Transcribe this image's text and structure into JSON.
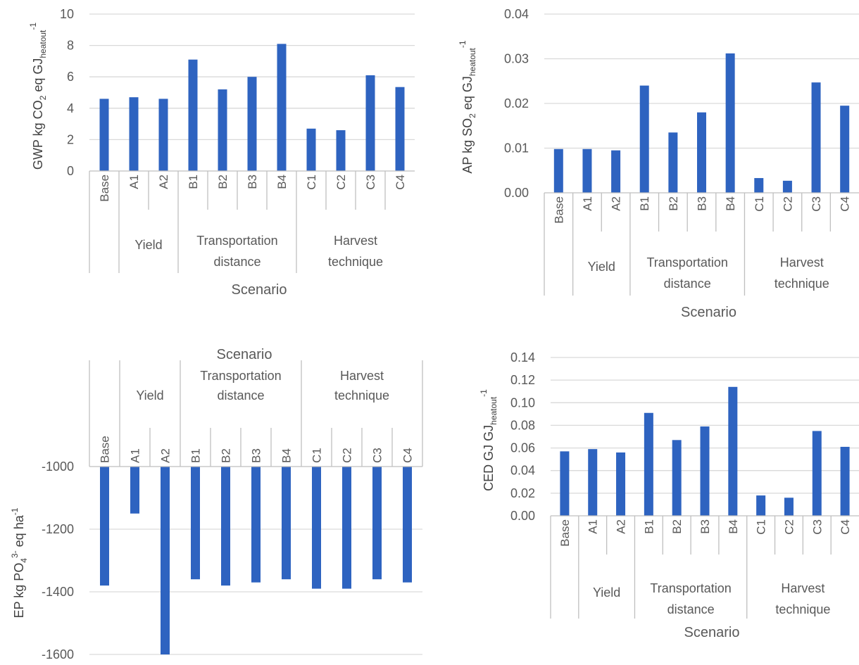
{
  "chart_data": [
    {
      "id": "gwp",
      "type": "bar",
      "ylabel_main": "GWP kg CO",
      "ylabel_sub": "2",
      "ylabel_mid": " eq GJ",
      "ylabel_sub2": "heatout",
      "ylabel_sup": "-1",
      "xlabel": "Scenario",
      "ylim": [
        0,
        10
      ],
      "yticks": [
        "0",
        "2",
        "4",
        "6",
        "8",
        "10"
      ],
      "categories": [
        "Base",
        "A1",
        "A2",
        "B1",
        "B2",
        "B3",
        "B4",
        "C1",
        "C2",
        "C3",
        "C4"
      ],
      "groups": [
        {
          "label_lines": [
            ""
          ],
          "span": 1
        },
        {
          "label_lines": [
            "Yield"
          ],
          "span": 2
        },
        {
          "label_lines": [
            "Transportation",
            "distance"
          ],
          "span": 4
        },
        {
          "label_lines": [
            "Harvest",
            "technique"
          ],
          "span": 4
        }
      ],
      "values": [
        4.6,
        4.7,
        4.6,
        7.1,
        5.2,
        6.0,
        8.1,
        2.7,
        2.6,
        6.1,
        5.35
      ],
      "color": "#2e63c0"
    },
    {
      "id": "ap",
      "type": "bar",
      "ylabel_main": "AP kg SO",
      "ylabel_sub": "2",
      "ylabel_mid": " eq GJ",
      "ylabel_sub2": "heatout",
      "ylabel_sup": "-1",
      "xlabel": "Scenario",
      "ylim": [
        0,
        0.04
      ],
      "yticks": [
        "0.00",
        "0.01",
        "0.02",
        "0.03",
        "0.04"
      ],
      "categories": [
        "Base",
        "A1",
        "A2",
        "B1",
        "B2",
        "B3",
        "B4",
        "C1",
        "C2",
        "C3",
        "C4"
      ],
      "groups": [
        {
          "label_lines": [
            ""
          ],
          "span": 1
        },
        {
          "label_lines": [
            "Yield"
          ],
          "span": 2
        },
        {
          "label_lines": [
            "Transportation",
            "distance"
          ],
          "span": 4
        },
        {
          "label_lines": [
            "Harvest",
            "technique"
          ],
          "span": 4
        }
      ],
      "values": [
        0.0098,
        0.0098,
        0.0095,
        0.024,
        0.0135,
        0.018,
        0.0312,
        0.0033,
        0.0027,
        0.0247,
        0.0195
      ],
      "color": "#2e63c0"
    },
    {
      "id": "ep",
      "type": "bar",
      "ylabel_main": "EP kg PO",
      "ylabel_sub": "4",
      "ylabel_sup_first": "3-",
      "ylabel_mid": " eq ha",
      "ylabel_sup": "-1",
      "xlabel": "Scenario",
      "ylim": [
        -1600,
        -1000
      ],
      "yticks": [
        "-1000",
        "-1200",
        "-1400",
        "-1600"
      ],
      "categories": [
        "Base",
        "A1",
        "A2",
        "B1",
        "B2",
        "B3",
        "B4",
        "C1",
        "C2",
        "C3",
        "C4"
      ],
      "groups": [
        {
          "label_lines": [
            ""
          ],
          "span": 1
        },
        {
          "label_lines": [
            "Yield"
          ],
          "span": 2
        },
        {
          "label_lines": [
            "Transportation",
            "distance"
          ],
          "span": 4
        },
        {
          "label_lines": [
            "Harvest",
            "technique"
          ],
          "span": 4
        }
      ],
      "values": [
        -1380,
        -1150,
        -1600,
        -1360,
        -1380,
        -1370,
        -1360,
        -1390,
        -1390,
        -1360,
        -1370
      ],
      "color": "#2e63c0"
    },
    {
      "id": "ced",
      "type": "bar",
      "ylabel_main": "CED GJ GJ",
      "ylabel_sub2": "heatout",
      "ylabel_sup": "-1",
      "xlabel": "Scenario",
      "ylim": [
        0,
        0.14
      ],
      "yticks": [
        "0.00",
        "0.02",
        "0.04",
        "0.06",
        "0.08",
        "0.10",
        "0.12",
        "0.14"
      ],
      "categories": [
        "Base",
        "A1",
        "A2",
        "B1",
        "B2",
        "B3",
        "B4",
        "C1",
        "C2",
        "C3",
        "C4"
      ],
      "groups": [
        {
          "label_lines": [
            ""
          ],
          "span": 1
        },
        {
          "label_lines": [
            "Yield"
          ],
          "span": 2
        },
        {
          "label_lines": [
            "Transportation",
            "distance"
          ],
          "span": 4
        },
        {
          "label_lines": [
            "Harvest",
            "technique"
          ],
          "span": 4
        }
      ],
      "values": [
        0.057,
        0.059,
        0.056,
        0.091,
        0.067,
        0.079,
        0.114,
        0.018,
        0.016,
        0.075,
        0.061
      ],
      "color": "#2e63c0"
    }
  ]
}
